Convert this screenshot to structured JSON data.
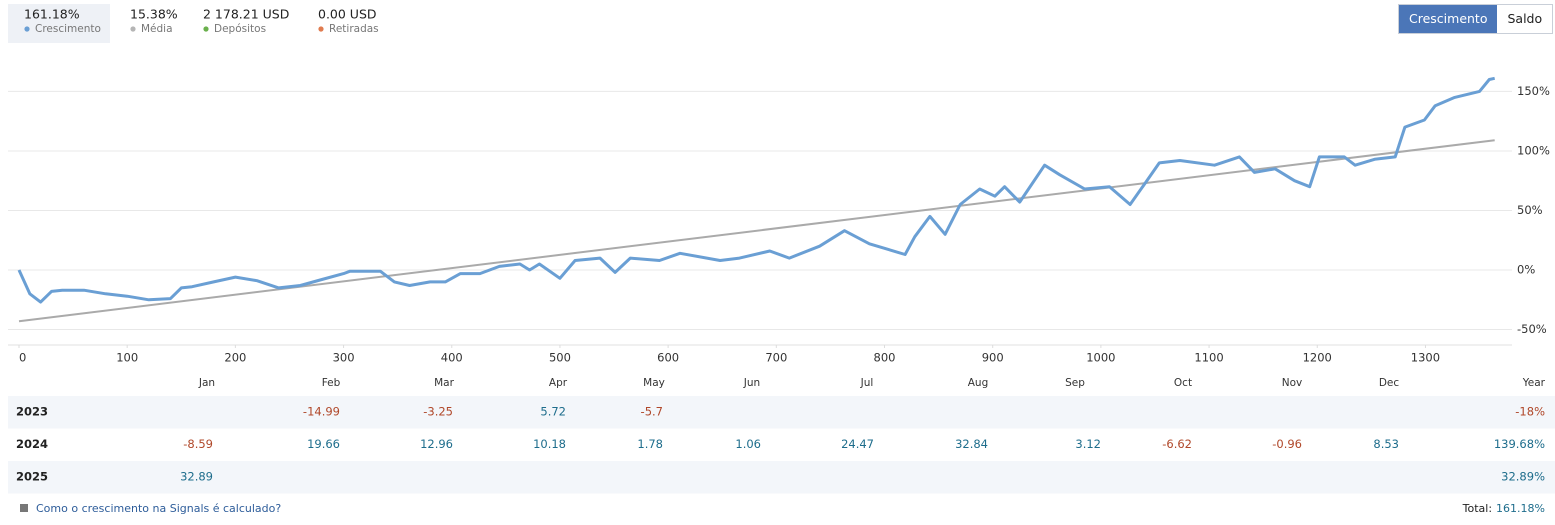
{
  "summary": [
    {
      "value": "161.18%",
      "label": "Crescimento",
      "color": "#6a9fd4"
    },
    {
      "value": "15.38%",
      "label": "Média",
      "color": "#b5b5b5"
    },
    {
      "value": "2 178.21 USD",
      "label": "Depósitos",
      "color": "#6ab04c"
    },
    {
      "value": "0.00 USD",
      "label": "Retiradas",
      "color": "#e07b4f"
    }
  ],
  "buttons": [
    "Crescimento",
    "Saldo"
  ],
  "chart_data": {
    "type": "line",
    "grid": true,
    "xlim": [
      0,
      1380
    ],
    "xticks": [
      0,
      100,
      200,
      300,
      400,
      500,
      600,
      700,
      800,
      900,
      1000,
      1100,
      1200,
      1300
    ],
    "ylim": [
      -63,
      168
    ],
    "yticks": [
      {
        "value": -50,
        "label": "-50%"
      },
      {
        "value": 0,
        "label": "0%"
      },
      {
        "value": 50,
        "label": "50%"
      },
      {
        "value": 100,
        "label": "100%"
      },
      {
        "value": 150,
        "label": "150%"
      }
    ],
    "series": [
      {
        "name": "Crescimento",
        "color": "#6a9fd4",
        "x": [
          0,
          10,
          20,
          30,
          40,
          60,
          80,
          100,
          120,
          140,
          150,
          160,
          180,
          200,
          220,
          240,
          260,
          280,
          300,
          306,
          334,
          347,
          361,
          380,
          394,
          408,
          426,
          444,
          463,
          472,
          481,
          500,
          514,
          537,
          551,
          565,
          592,
          611,
          648,
          666,
          694,
          712,
          740,
          763,
          786,
          819,
          828,
          842,
          856,
          870,
          888,
          902,
          911,
          925,
          948,
          962,
          985,
          1008,
          1027,
          1041,
          1054,
          1073,
          1105,
          1128,
          1142,
          1161,
          1179,
          1193,
          1202,
          1225,
          1235,
          1253,
          1272,
          1281,
          1299,
          1309,
          1327,
          1350,
          1359,
          1364
        ],
        "values": [
          0,
          -20,
          -27,
          -18,
          -17,
          -17,
          -20,
          -22,
          -25,
          -24,
          -15,
          -14,
          -10,
          -6,
          -9,
          -15,
          -13,
          -8,
          -3,
          -1,
          -1,
          -10,
          -13,
          -10,
          -10,
          -3,
          -3,
          3,
          5,
          0,
          5,
          -7,
          8,
          10,
          -2,
          10,
          8,
          14,
          8,
          10,
          16,
          10,
          20,
          33,
          22,
          13,
          28,
          45,
          30,
          55,
          68,
          62,
          70,
          57,
          88,
          80,
          68,
          70,
          55,
          73,
          90,
          92,
          88,
          95,
          82,
          85,
          75,
          70,
          95,
          95,
          88,
          93,
          95,
          120,
          126,
          138,
          145,
          150,
          160,
          161
        ]
      },
      {
        "name": "Média",
        "color": "#aaaaaa",
        "x": [
          0,
          1364
        ],
        "values": [
          -43,
          109
        ]
      }
    ]
  },
  "table": {
    "columns": [
      "Jan",
      "Feb",
      "Mar",
      "Apr",
      "May",
      "Jun",
      "Jul",
      "Aug",
      "Sep",
      "Oct",
      "Nov",
      "Dec",
      "Year"
    ],
    "rows": [
      [
        "2023",
        null,
        "-14.99",
        "-3.25",
        "5.72",
        "-5.7",
        null,
        null,
        null,
        null,
        null,
        null,
        null,
        "-18%"
      ],
      [
        "2024",
        "-8.59",
        "19.66",
        "12.96",
        "10.18",
        "1.78",
        "1.06",
        "24.47",
        "32.84",
        "3.12",
        "-6.62",
        "-0.96",
        "8.53",
        "139.68%"
      ],
      [
        "2025",
        "32.89",
        null,
        null,
        null,
        null,
        null,
        null,
        null,
        null,
        null,
        null,
        null,
        "32.89%"
      ]
    ]
  },
  "footer": {
    "link": "Como o crescimento na Signals é calculado?",
    "total_label": "Total:",
    "total_value": "161.18%"
  }
}
